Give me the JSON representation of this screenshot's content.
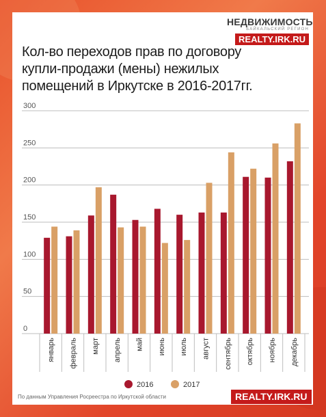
{
  "logo": {
    "name": "НЕДВИЖИМОСТЬ",
    "tagline": "байкальский регион",
    "url": "REALTY.IRK.RU"
  },
  "footer": {
    "source": "По данным Управления Росреестра по Иркутской области",
    "url": "REALTY.IRK.RU"
  },
  "colors": {
    "s2016": "#a8182e",
    "s2017": "#d9a066",
    "accent": "#c41a1a"
  },
  "chart_data": {
    "type": "bar",
    "title": "Кол-во переходов прав по договору купли-продажи (мены) нежилых помещений в Иркутске в 2016-2017гг.",
    "categories": [
      "январь",
      "февраль",
      "март",
      "апрель",
      "май",
      "июнь",
      "июль",
      "август",
      "сентябрь",
      "октябрь",
      "ноябрь",
      "декабрь"
    ],
    "series": [
      {
        "name": "2016",
        "values": [
          129,
          131,
          159,
          187,
          153,
          168,
          160,
          163,
          163,
          211,
          210,
          232
        ]
      },
      {
        "name": "2017",
        "values": [
          144,
          139,
          197,
          143,
          144,
          122,
          126,
          203,
          244,
          222,
          256,
          283
        ]
      }
    ],
    "ylim": [
      0,
      300
    ],
    "yticks": [
      0,
      50,
      100,
      150,
      200,
      250,
      300
    ],
    "grid": true,
    "legend": "bottom"
  }
}
